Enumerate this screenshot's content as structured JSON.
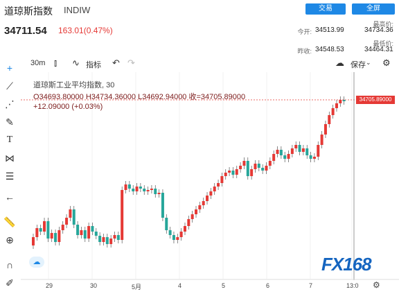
{
  "header": {
    "title": "道琼斯指数",
    "code": "INDIW",
    "trade_button": "交易",
    "fullscreen_button": "全屏",
    "price": "34711.54",
    "change": "163.01(0.47%)",
    "open_label": "今开:",
    "open_value": "34513.99",
    "prev_close_label": "昨收:",
    "prev_close_value": "34548.53",
    "high_label": "最高价:",
    "high_value": "34734.36",
    "low_label": "最低价:",
    "low_value": "34464.31"
  },
  "toolbar": {
    "interval": "30m",
    "indicators": "指标",
    "save": "保存"
  },
  "legend": {
    "name": "道琼斯工业平均指数, 30",
    "ohlc": "O34693.80000  H34734.36000  L34692.94000  收=34705.89000",
    "change": "+12.09000 (+0.03%)"
  },
  "price_tag": "34705.89000",
  "x_ticks": [
    "29",
    "30",
    "5月",
    "4",
    "5",
    "6",
    "7",
    "13:0"
  ],
  "logo": "FX168",
  "colors": {
    "up": "#e53935",
    "down": "#26a69a",
    "accent": "#1e88e5"
  },
  "chart_data": {
    "type": "candlestick",
    "x": [
      "29",
      "30",
      "5月",
      "4",
      "5",
      "6",
      "7"
    ],
    "last_value": 34705.89
  }
}
